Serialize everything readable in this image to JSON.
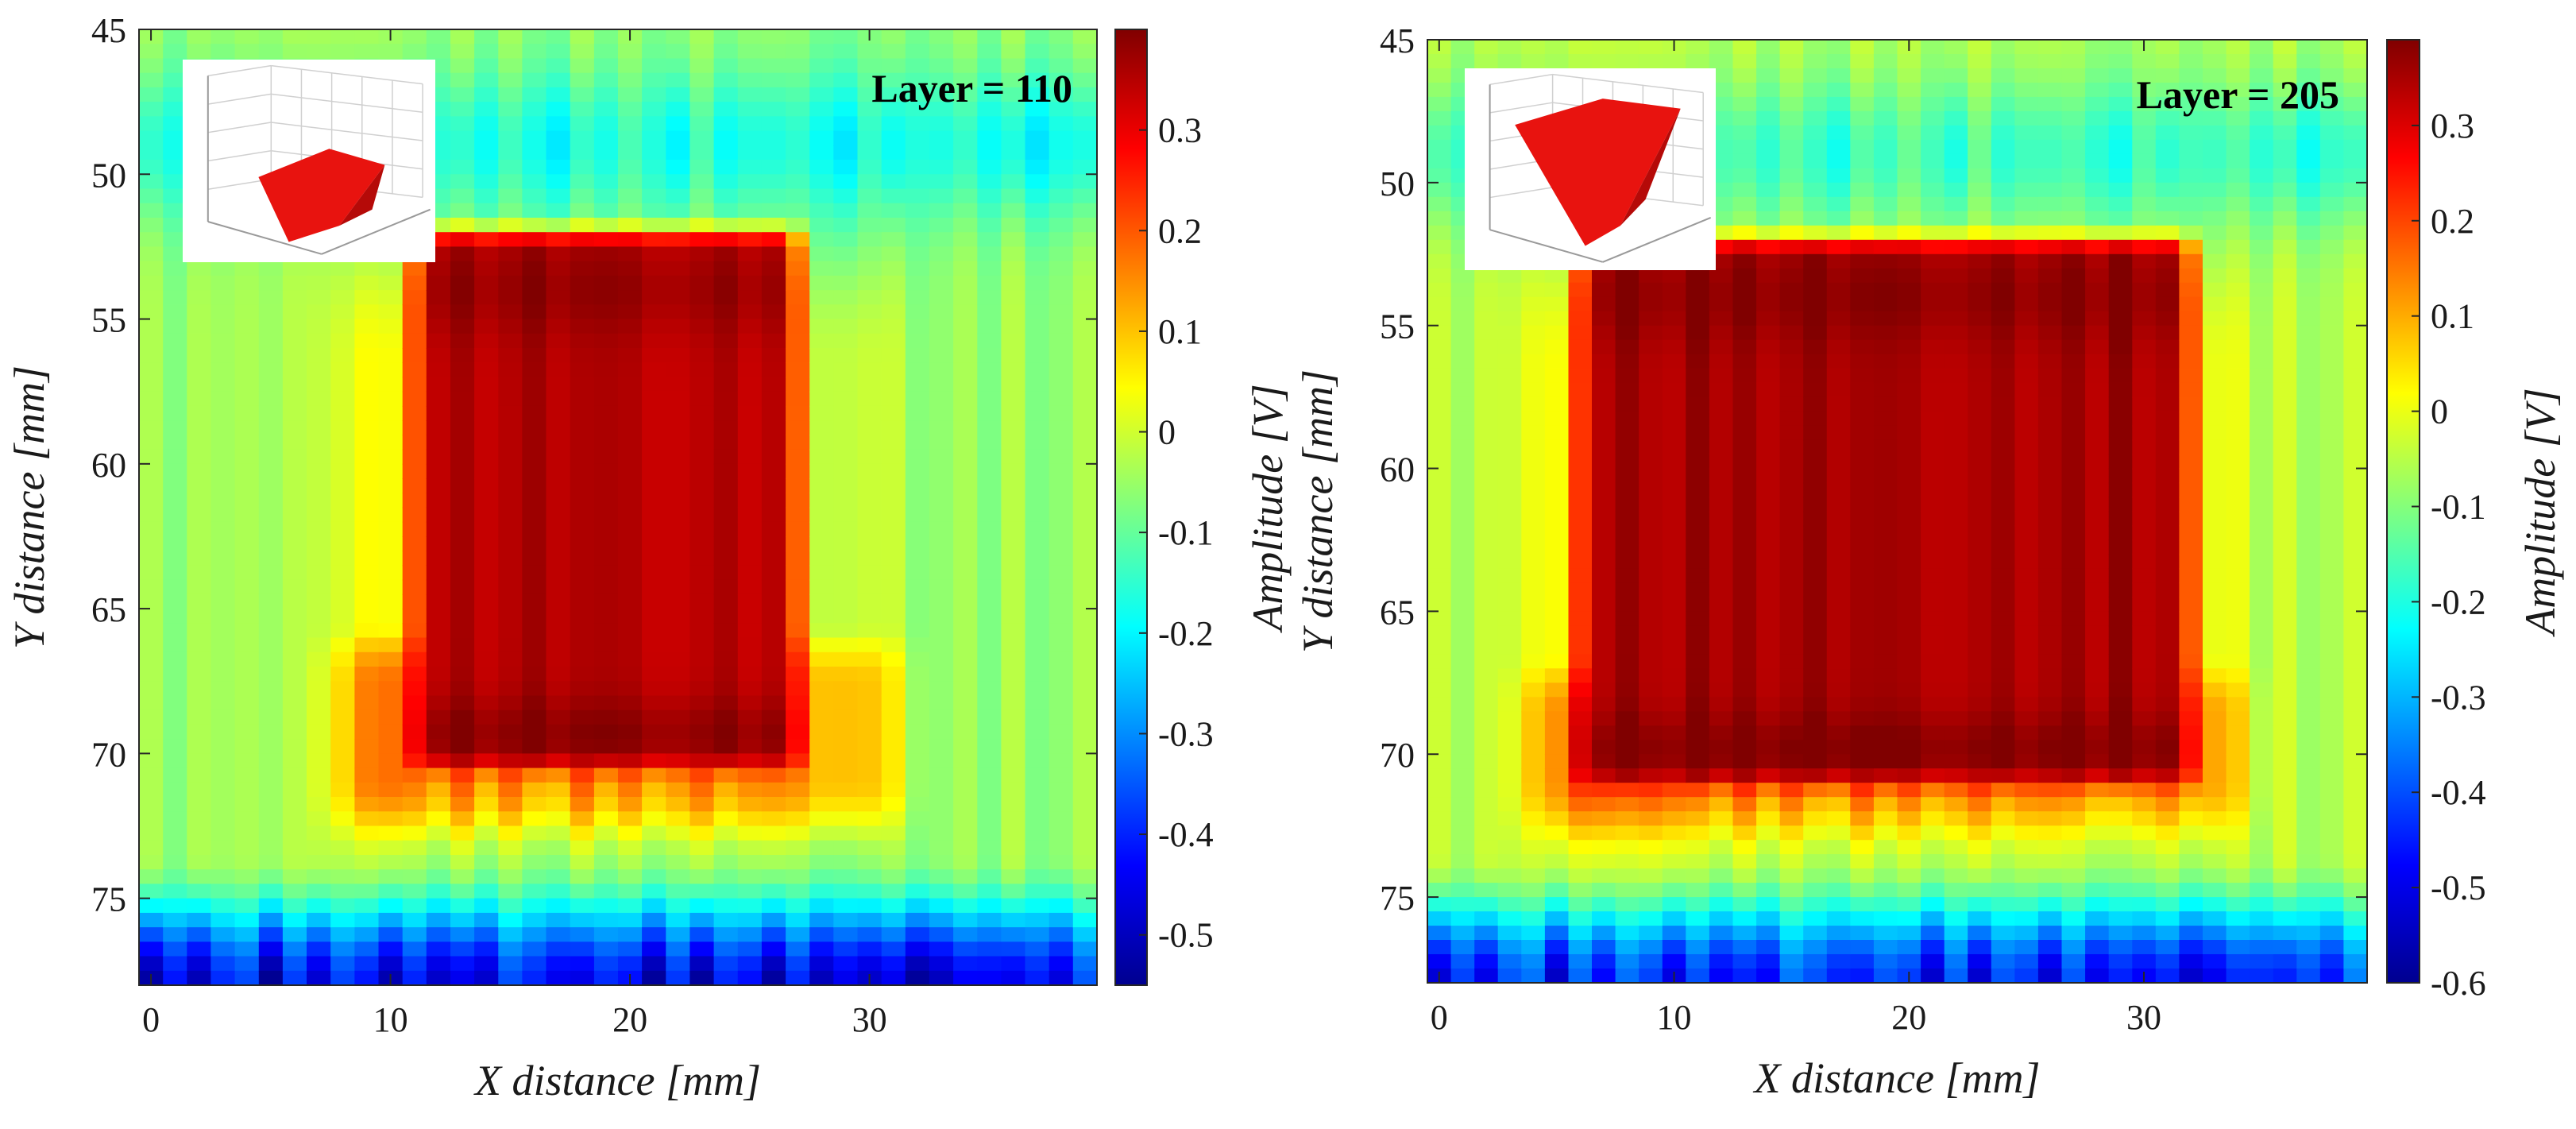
{
  "chart_data": [
    {
      "type": "heatmap",
      "title": "Layer = 110",
      "xlabel": "X distance [mm]",
      "ylabel": "Y distance [mm]",
      "colorbar_label": "Amplitude [V]",
      "xlim": [
        -0.5,
        39.5
      ],
      "ylim": [
        45,
        78
      ],
      "y_reversed": true,
      "xticks": [
        0,
        10,
        20,
        30
      ],
      "yticks": [
        45,
        50,
        55,
        60,
        65,
        70,
        75
      ],
      "clim": [
        -0.55,
        0.4
      ],
      "cbar_ticks": [
        0.3,
        0.2,
        0.1,
        0,
        -0.1,
        -0.2,
        -0.3,
        -0.4,
        -0.5
      ],
      "colormap": "jet",
      "pattern": {
        "background_value": -0.05,
        "high_region_value": 0.33,
        "high_region_x_range": [
          11,
          27
        ],
        "high_region_y_range": [
          52,
          70.5
        ],
        "halo_x_range": [
          8,
          31
        ],
        "halo_y_range": [
          66,
          72.5
        ],
        "top_low_band_y": 49,
        "bottom_low_band_y": [
          75,
          78
        ]
      },
      "inset": {
        "description": "3D wireframe preview",
        "shape_color": "#e8130f"
      }
    },
    {
      "type": "heatmap",
      "title": "Layer = 205",
      "xlabel": "X distance [mm]",
      "ylabel": "Y distance [mm]",
      "colorbar_label": "Amplitude [V]",
      "xlim": [
        -0.5,
        39.5
      ],
      "ylim": [
        45,
        78
      ],
      "y_reversed": true,
      "xticks": [
        0,
        10,
        20,
        30
      ],
      "yticks": [
        45,
        50,
        55,
        60,
        65,
        70,
        75
      ],
      "clim": [
        -0.6,
        0.39
      ],
      "cbar_ticks": [
        0.3,
        0.2,
        0.1,
        0,
        -0.1,
        -0.2,
        -0.3,
        -0.4,
        -0.5,
        -0.6
      ],
      "colormap": "jet",
      "pattern": {
        "background_value": -0.05,
        "high_region_value": 0.33,
        "high_region_x_range": [
          6,
          32
        ],
        "high_region_y_range": [
          52,
          71
        ],
        "halo_x_range": [
          4,
          34
        ],
        "halo_y_range": [
          67,
          72.5
        ],
        "top_low_band_y": 49,
        "bottom_low_band_y": [
          75,
          78
        ]
      },
      "inset": {
        "description": "3D wireframe preview",
        "shape_color": "#e8130f"
      }
    }
  ]
}
